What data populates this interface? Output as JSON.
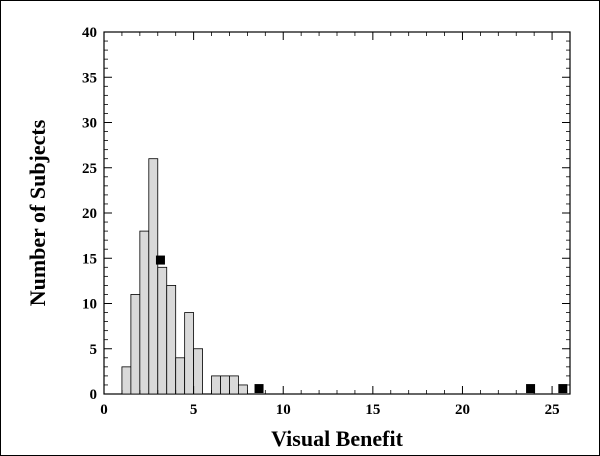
{
  "chart_data": {
    "type": "bar",
    "title": "",
    "xlabel": "Visual Benefit",
    "ylabel": "Number of Subjects",
    "xlim": [
      0,
      26
    ],
    "ylim": [
      0,
      40
    ],
    "xticks": [
      0,
      5,
      10,
      15,
      20,
      25
    ],
    "yticks": [
      0,
      5,
      10,
      15,
      20,
      25,
      30,
      35,
      40
    ],
    "grid": false,
    "colors": {
      "bar_fill": "#d9d9d9",
      "bar_stroke": "#000000",
      "marker": "#000000"
    },
    "series": [
      {
        "kind": "histogram",
        "bin_width": 0.5,
        "bins": [
          {
            "start": 1.0,
            "count": 3
          },
          {
            "start": 1.5,
            "count": 11
          },
          {
            "start": 2.0,
            "count": 18
          },
          {
            "start": 2.5,
            "count": 26
          },
          {
            "start": 3.0,
            "count": 14
          },
          {
            "start": 3.5,
            "count": 12
          },
          {
            "start": 4.0,
            "count": 4
          },
          {
            "start": 4.5,
            "count": 9
          },
          {
            "start": 5.0,
            "count": 5
          },
          {
            "start": 6.0,
            "count": 2
          },
          {
            "start": 6.5,
            "count": 2
          },
          {
            "start": 7.0,
            "count": 2
          },
          {
            "start": 7.5,
            "count": 1
          }
        ]
      },
      {
        "kind": "markers",
        "points": [
          {
            "x": 3.15,
            "y": 14.8
          },
          {
            "x": 8.65,
            "y": 0.6
          },
          {
            "x": 23.8,
            "y": 0.6
          },
          {
            "x": 25.6,
            "y": 0.6
          }
        ]
      }
    ]
  }
}
